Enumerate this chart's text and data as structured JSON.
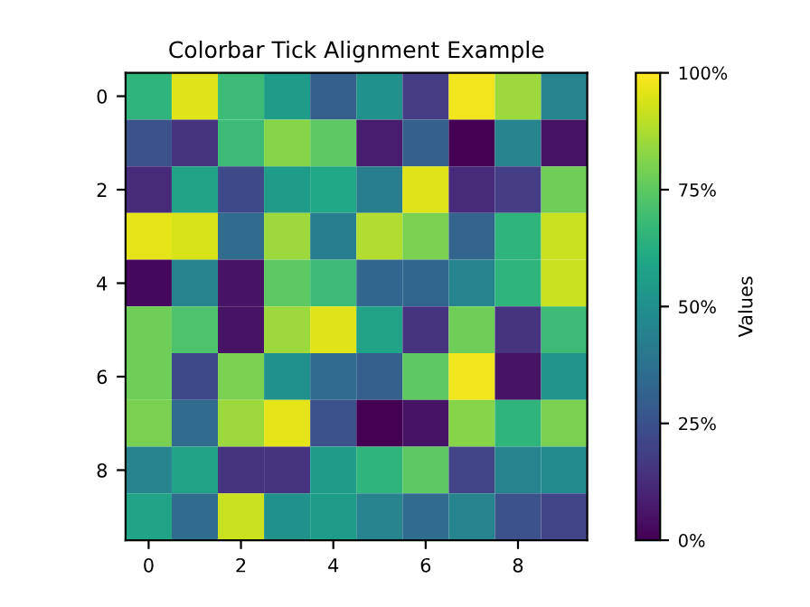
{
  "chart_data": {
    "type": "heatmap",
    "title": "Colorbar Tick Alignment Example",
    "clabel": "Values",
    "categories": [
      "0",
      null,
      "2",
      null,
      "4",
      null,
      "6",
      null,
      "8",
      null
    ],
    "y_categories": [
      "0",
      null,
      "2",
      null,
      "4",
      null,
      "6",
      null,
      "8",
      null
    ],
    "cells": [
      [
        0.65,
        0.95,
        0.68,
        0.55,
        0.3,
        0.5,
        0.18,
        0.98,
        0.85,
        0.45
      ],
      [
        0.25,
        0.15,
        0.68,
        0.82,
        0.75,
        0.08,
        0.3,
        0.0,
        0.45,
        0.05
      ],
      [
        0.12,
        0.58,
        0.22,
        0.55,
        0.6,
        0.42,
        0.95,
        0.12,
        0.18,
        0.78
      ],
      [
        0.96,
        0.94,
        0.35,
        0.85,
        0.42,
        0.88,
        0.8,
        0.32,
        0.65,
        0.92
      ],
      [
        0.02,
        0.45,
        0.05,
        0.75,
        0.68,
        0.33,
        0.33,
        0.45,
        0.65,
        0.92
      ],
      [
        0.78,
        0.72,
        0.05,
        0.85,
        0.95,
        0.58,
        0.15,
        0.78,
        0.15,
        0.68
      ],
      [
        0.78,
        0.22,
        0.8,
        0.5,
        0.35,
        0.3,
        0.75,
        0.98,
        0.05,
        0.52
      ],
      [
        0.8,
        0.35,
        0.85,
        0.96,
        0.25,
        0.0,
        0.05,
        0.82,
        0.65,
        0.8
      ],
      [
        0.45,
        0.58,
        0.15,
        0.15,
        0.55,
        0.65,
        0.75,
        0.2,
        0.45,
        0.48
      ],
      [
        0.58,
        0.35,
        0.92,
        0.5,
        0.55,
        0.45,
        0.35,
        0.45,
        0.25,
        0.2
      ]
    ],
    "clim": [
      0,
      1
    ],
    "cticks": [
      {
        "value": 0,
        "label": "0%"
      },
      {
        "value": 0.25,
        "label": "25%"
      },
      {
        "value": 0.5,
        "label": "50%"
      },
      {
        "value": 0.75,
        "label": "75%"
      },
      {
        "value": 1,
        "label": "100%"
      }
    ]
  }
}
